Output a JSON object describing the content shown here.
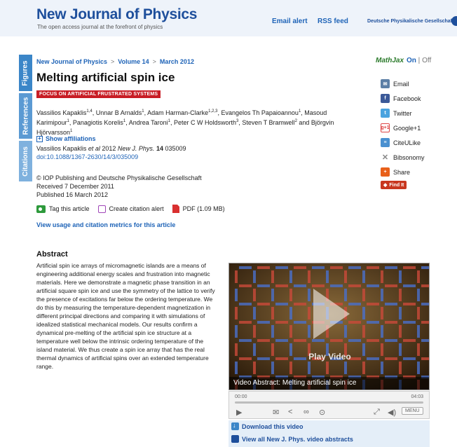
{
  "header": {
    "title": "New Journal of Physics",
    "tagline": "The open access journal at the forefront of physics",
    "email_alert": "Email alert",
    "rss_feed": "RSS feed",
    "society": "Deutsche Physikalische Gesellschaft"
  },
  "side_tabs": {
    "figures": "Figures",
    "references": "References",
    "citations": "Citations"
  },
  "breadcrumb": {
    "journal": "New Journal of Physics",
    "volume": "Volume 14",
    "issue": "March 2012",
    "separator": ">"
  },
  "article": {
    "title": "Melting artificial spin ice",
    "focus_badge": "FOCUS ON ARTIFICIAL FRUSTRATED SYSTEMS",
    "show_affiliations": "Show affiliations",
    "citation_prefix": "Vassilios Kapaklis ",
    "citation_etal": "et al",
    "citation_mid": " 2012 ",
    "citation_journal": "New J. Phys.",
    "citation_vol": " 14",
    "citation_suffix": " 035009",
    "doi": "doi:10.1088/1367-2630/14/3/035009",
    "copyright": "© IOP Publishing and Deutsche Physikalische Gesellschaft",
    "received": "Received 7 December 2011",
    "published": "Published 16 March 2012"
  },
  "tools": {
    "tag": "Tag this article",
    "alert": "Create citation alert",
    "pdf": "PDF (1.09 MB)"
  },
  "metrics_link": "View usage and citation metrics for this article",
  "abstract": {
    "heading": "Abstract",
    "body": "Artificial spin ice arrays of micromagnetic islands are a means of engineering additional energy scales and frustration into magnetic materials. Here we demonstrate a magnetic phase transition in an artificial square spin ice and use the symmetry of the lattice to verify the presence of excitations far below the ordering temperature. We do this by measuring the temperature-dependent magnetization in different principal directions and comparing it with simulations of idealized statistical mechanical models. Our results confirm a dynamical pre-melting of the artificial spin ice structure at a temperature well below the intrinsic ordering temperature of the island material. We thus create a spin ice array that has the real thermal dynamics of artificial spins over an extended temperature range."
  },
  "video": {
    "play_label": "Play Video",
    "caption": "Video Abstract: Melting artificial spin ice",
    "time_start": "00:00",
    "time_end": "04:03",
    "menu": "MENU",
    "download": "Download this video",
    "view_all": "View all New J. Phys. video abstracts"
  },
  "sidebar": {
    "mathjax": "MathJax",
    "on": "On",
    "sep": " | ",
    "off": "Off",
    "email": "Email",
    "facebook": "Facebook",
    "twitter": "Twitter",
    "google_badge": "g+1",
    "google": "Google+1",
    "citeulike": "CiteULike",
    "bibsonomy": "Bibsonomy",
    "share": "Share",
    "find_it": "Find It"
  }
}
